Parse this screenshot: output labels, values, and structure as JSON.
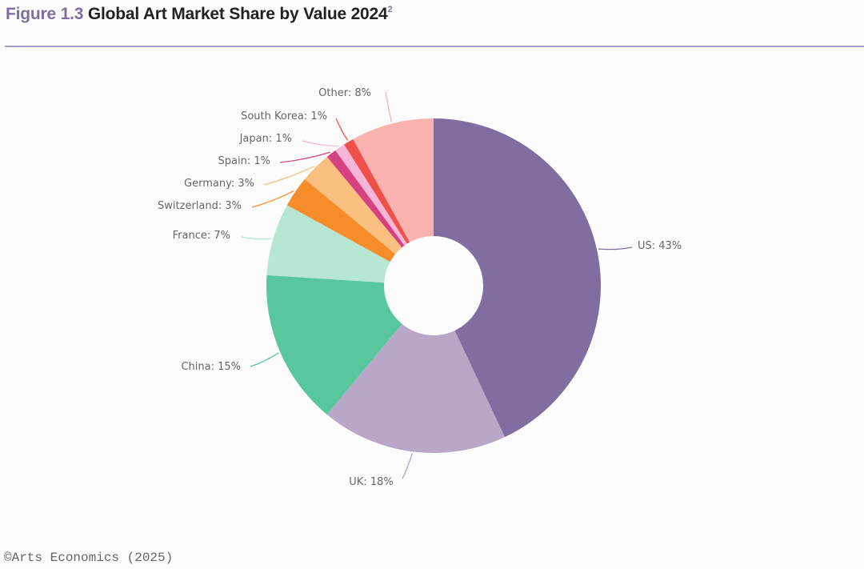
{
  "header": {
    "figure_label": "Figure 1.3",
    "title": "Global Art Market Share by Value 2024",
    "footnote_marker": "2"
  },
  "footer": {
    "credit": "©Arts Economics (2025)"
  },
  "chart_data": {
    "type": "pie",
    "donut": true,
    "title": "Global Art Market Share by Value 2024",
    "unit": "%",
    "slices": [
      {
        "label": "US",
        "value": 43,
        "text": "US: 43%",
        "color": "#7f6e9f"
      },
      {
        "label": "UK",
        "value": 18,
        "text": "UK: 18%",
        "color": "#b6a8c6"
      },
      {
        "label": "China",
        "value": 15,
        "text": "China: 15%",
        "color": "#58c79e"
      },
      {
        "label": "France",
        "value": 7,
        "text": "France: 7%",
        "color": "#b7e6d3"
      },
      {
        "label": "Switzerland",
        "value": 3,
        "text": "Switzerland: 3%",
        "color": "#f68d2a"
      },
      {
        "label": "Germany",
        "value": 3,
        "text": "Germany: 3%",
        "color": "#fbbf80"
      },
      {
        "label": "Spain",
        "value": 1,
        "text": "Spain: 1%",
        "color": "#d6417f"
      },
      {
        "label": "Japan",
        "value": 1,
        "text": "Japan: 1%",
        "color": "#f7b6d8"
      },
      {
        "label": "South Korea",
        "value": 1,
        "text": "South Korea: 1%",
        "color": "#f0504a"
      },
      {
        "label": "Other",
        "value": 8,
        "text": "Other: 8%",
        "color": "#f9b2ae"
      }
    ]
  }
}
